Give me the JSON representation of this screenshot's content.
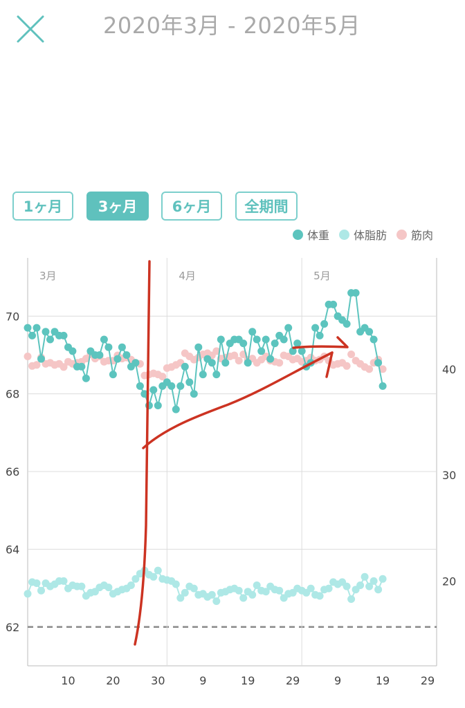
{
  "header": {
    "title": "2020年3月 - 2020年5月",
    "close_icon": "close-icon"
  },
  "range_tabs": [
    {
      "label": "1ヶ月",
      "active": false
    },
    {
      "label": "3ヶ月",
      "active": true
    },
    {
      "label": "6ヶ月",
      "active": false
    },
    {
      "label": "全期間",
      "active": false
    }
  ],
  "colors": {
    "weight": "#5cc4be",
    "body_fat": "#aee8e6",
    "muscle": "#f5c6c6",
    "annotation": "#cc3322",
    "accent": "#5fc1bd"
  },
  "chart_data": {
    "type": "scatter",
    "legend_position": "top-right",
    "month_labels": [
      {
        "label": "3月",
        "day": 0
      },
      {
        "label": "4月",
        "day": 31
      },
      {
        "label": "5月",
        "day": 61
      }
    ],
    "x_ticks": [
      {
        "label": "10",
        "day": 9
      },
      {
        "label": "20",
        "day": 19
      },
      {
        "label": "30",
        "day": 29
      },
      {
        "label": "9",
        "day": 39
      },
      {
        "label": "19",
        "day": 49
      },
      {
        "label": "29",
        "day": 59
      },
      {
        "label": "9",
        "day": 69
      },
      {
        "label": "19",
        "day": 79
      },
      {
        "label": "29",
        "day": 89
      }
    ],
    "xlim": [
      0,
      91
    ],
    "left_axis": {
      "ticks": [
        62,
        64,
        66,
        68,
        70
      ],
      "ylim": [
        61,
        71.5
      ]
    },
    "right_axis": {
      "ticks": [
        20,
        30,
        40
      ],
      "ylim": [
        12,
        50.5
      ]
    },
    "dashed_line_value": 62,
    "series": [
      {
        "name": "体重",
        "axis": "left",
        "color": "#5cc4be",
        "line": true,
        "points": [
          [
            0,
            69.7
          ],
          [
            1,
            69.5
          ],
          [
            2,
            69.7
          ],
          [
            3,
            68.9
          ],
          [
            4,
            69.6
          ],
          [
            5,
            69.4
          ],
          [
            6,
            69.6
          ],
          [
            7,
            69.5
          ],
          [
            8,
            69.5
          ],
          [
            9,
            69.2
          ],
          [
            10,
            69.1
          ],
          [
            11,
            68.7
          ],
          [
            12,
            68.7
          ],
          [
            13,
            68.4
          ],
          [
            14,
            69.1
          ],
          [
            15,
            69.0
          ],
          [
            16,
            69.0
          ],
          [
            17,
            69.4
          ],
          [
            18,
            69.2
          ],
          [
            19,
            68.5
          ],
          [
            20,
            68.9
          ],
          [
            21,
            69.2
          ],
          [
            22,
            69.0
          ],
          [
            23,
            68.7
          ],
          [
            24,
            68.8
          ],
          [
            25,
            68.2
          ],
          [
            26,
            68.0
          ],
          [
            27,
            67.7
          ],
          [
            28,
            68.1
          ],
          [
            29,
            67.7
          ],
          [
            30,
            68.2
          ],
          [
            31,
            68.3
          ],
          [
            32,
            68.2
          ],
          [
            33,
            67.6
          ],
          [
            34,
            68.2
          ],
          [
            35,
            68.7
          ],
          [
            36,
            68.3
          ],
          [
            37,
            68.0
          ],
          [
            38,
            69.2
          ],
          [
            39,
            68.5
          ],
          [
            40,
            68.9
          ],
          [
            41,
            68.8
          ],
          [
            42,
            68.5
          ],
          [
            43,
            69.4
          ],
          [
            44,
            68.8
          ],
          [
            45,
            69.3
          ],
          [
            46,
            69.4
          ],
          [
            47,
            69.4
          ],
          [
            48,
            69.3
          ],
          [
            49,
            68.8
          ],
          [
            50,
            69.6
          ],
          [
            51,
            69.4
          ],
          [
            52,
            69.1
          ],
          [
            53,
            69.4
          ],
          [
            54,
            68.9
          ],
          [
            55,
            69.3
          ],
          [
            56,
            69.5
          ],
          [
            57,
            69.4
          ],
          [
            58,
            69.7
          ],
          [
            59,
            69.1
          ],
          [
            60,
            69.3
          ],
          [
            61,
            69.1
          ],
          [
            62,
            68.7
          ],
          [
            63,
            68.8
          ],
          [
            64,
            69.7
          ],
          [
            65,
            69.5
          ],
          [
            66,
            69.8
          ],
          [
            67,
            70.3
          ],
          [
            68,
            70.3
          ],
          [
            69,
            70.0
          ],
          [
            70,
            69.9
          ],
          [
            71,
            69.8
          ],
          [
            72,
            70.6
          ],
          [
            73,
            70.6
          ],
          [
            74,
            69.6
          ],
          [
            75,
            69.7
          ],
          [
            76,
            69.6
          ],
          [
            77,
            69.4
          ],
          [
            78,
            68.8
          ],
          [
            79,
            68.2
          ]
        ]
      },
      {
        "name": "体脂肪",
        "axis": "right",
        "color": "#aee8e6",
        "line": true,
        "points": [
          [
            0,
            18.8
          ],
          [
            1,
            19.9
          ],
          [
            2,
            19.8
          ],
          [
            3,
            19.1
          ],
          [
            4,
            19.8
          ],
          [
            5,
            19.5
          ],
          [
            6,
            19.7
          ],
          [
            7,
            20.0
          ],
          [
            8,
            20.0
          ],
          [
            9,
            19.3
          ],
          [
            10,
            19.6
          ],
          [
            11,
            19.5
          ],
          [
            12,
            19.5
          ],
          [
            13,
            18.6
          ],
          [
            14,
            18.9
          ],
          [
            15,
            19.0
          ],
          [
            16,
            19.4
          ],
          [
            17,
            19.6
          ],
          [
            18,
            19.4
          ],
          [
            19,
            18.8
          ],
          [
            20,
            19.0
          ],
          [
            21,
            19.2
          ],
          [
            22,
            19.3
          ],
          [
            23,
            19.6
          ],
          [
            24,
            20.2
          ],
          [
            25,
            20.7
          ],
          [
            26,
            21.0
          ],
          [
            27,
            20.6
          ],
          [
            28,
            20.4
          ],
          [
            29,
            21.0
          ],
          [
            30,
            20.2
          ],
          [
            31,
            20.1
          ],
          [
            32,
            20.0
          ],
          [
            33,
            19.7
          ],
          [
            34,
            18.4
          ],
          [
            35,
            18.9
          ],
          [
            36,
            19.5
          ],
          [
            37,
            19.3
          ],
          [
            38,
            18.7
          ],
          [
            39,
            18.8
          ],
          [
            40,
            18.5
          ],
          [
            41,
            18.7
          ],
          [
            42,
            18.1
          ],
          [
            43,
            18.9
          ],
          [
            44,
            19.0
          ],
          [
            45,
            19.2
          ],
          [
            46,
            19.3
          ],
          [
            47,
            19.1
          ],
          [
            48,
            18.4
          ],
          [
            49,
            19.0
          ],
          [
            50,
            18.7
          ],
          [
            51,
            19.6
          ],
          [
            52,
            19.1
          ],
          [
            53,
            19.0
          ],
          [
            54,
            19.5
          ],
          [
            55,
            19.2
          ],
          [
            56,
            19.1
          ],
          [
            57,
            18.4
          ],
          [
            58,
            18.8
          ],
          [
            59,
            18.9
          ],
          [
            60,
            19.3
          ],
          [
            61,
            19.1
          ],
          [
            62,
            18.9
          ],
          [
            63,
            19.3
          ],
          [
            64,
            18.7
          ],
          [
            65,
            18.6
          ],
          [
            66,
            19.2
          ],
          [
            67,
            19.3
          ],
          [
            68,
            19.9
          ],
          [
            69,
            19.7
          ],
          [
            70,
            19.9
          ],
          [
            71,
            19.5
          ],
          [
            72,
            18.3
          ],
          [
            73,
            19.2
          ],
          [
            74,
            19.6
          ],
          [
            75,
            20.4
          ],
          [
            76,
            19.5
          ],
          [
            77,
            20.0
          ],
          [
            78,
            19.2
          ],
          [
            79,
            20.2
          ]
        ]
      },
      {
        "name": "筋肉",
        "axis": "right",
        "color": "#f5c6c6",
        "line": false,
        "points": [
          [
            0,
            41.2
          ],
          [
            1,
            40.3
          ],
          [
            2,
            40.4
          ],
          [
            3,
            41.1
          ],
          [
            4,
            40.5
          ],
          [
            5,
            40.6
          ],
          [
            6,
            40.4
          ],
          [
            7,
            40.5
          ],
          [
            8,
            40.2
          ],
          [
            9,
            40.7
          ],
          [
            10,
            40.5
          ],
          [
            11,
            40.6
          ],
          [
            12,
            40.7
          ],
          [
            13,
            41.0
          ],
          [
            14,
            41.4
          ],
          [
            15,
            41.0
          ],
          [
            16,
            41.2
          ],
          [
            17,
            40.7
          ],
          [
            18,
            40.8
          ],
          [
            19,
            40.8
          ],
          [
            20,
            41.3
          ],
          [
            21,
            41.0
          ],
          [
            22,
            41.1
          ],
          [
            23,
            40.9
          ],
          [
            24,
            40.6
          ],
          [
            25,
            40.5
          ],
          [
            26,
            39.4
          ],
          [
            27,
            39.5
          ],
          [
            28,
            39.6
          ],
          [
            29,
            39.5
          ],
          [
            30,
            39.3
          ],
          [
            31,
            40.1
          ],
          [
            32,
            40.2
          ],
          [
            33,
            40.4
          ],
          [
            34,
            40.6
          ],
          [
            35,
            41.5
          ],
          [
            36,
            41.2
          ],
          [
            37,
            40.9
          ],
          [
            38,
            41.1
          ],
          [
            39,
            41.4
          ],
          [
            40,
            41.5
          ],
          [
            41,
            41.3
          ],
          [
            42,
            41.7
          ],
          [
            43,
            41.0
          ],
          [
            44,
            41.1
          ],
          [
            45,
            41.2
          ],
          [
            46,
            41.3
          ],
          [
            47,
            40.8
          ],
          [
            48,
            41.4
          ],
          [
            49,
            40.9
          ],
          [
            50,
            41.0
          ],
          [
            51,
            40.6
          ],
          [
            52,
            40.9
          ],
          [
            53,
            41.2
          ],
          [
            54,
            40.8
          ],
          [
            55,
            40.7
          ],
          [
            56,
            40.6
          ],
          [
            57,
            41.3
          ],
          [
            58,
            41.2
          ],
          [
            59,
            40.9
          ],
          [
            60,
            41.0
          ],
          [
            61,
            40.7
          ],
          [
            62,
            40.8
          ],
          [
            63,
            41.1
          ],
          [
            64,
            40.8
          ],
          [
            65,
            40.9
          ],
          [
            66,
            41.2
          ],
          [
            67,
            40.8
          ],
          [
            68,
            40.4
          ],
          [
            69,
            40.5
          ],
          [
            70,
            40.6
          ],
          [
            71,
            40.3
          ],
          [
            72,
            41.4
          ],
          [
            73,
            40.8
          ],
          [
            74,
            40.5
          ],
          [
            75,
            40.2
          ],
          [
            76,
            40.0
          ],
          [
            77,
            40.6
          ],
          [
            78,
            40.9
          ],
          [
            79,
            40.0
          ]
        ]
      }
    ]
  },
  "annotation": {
    "color": "#cc3322"
  }
}
